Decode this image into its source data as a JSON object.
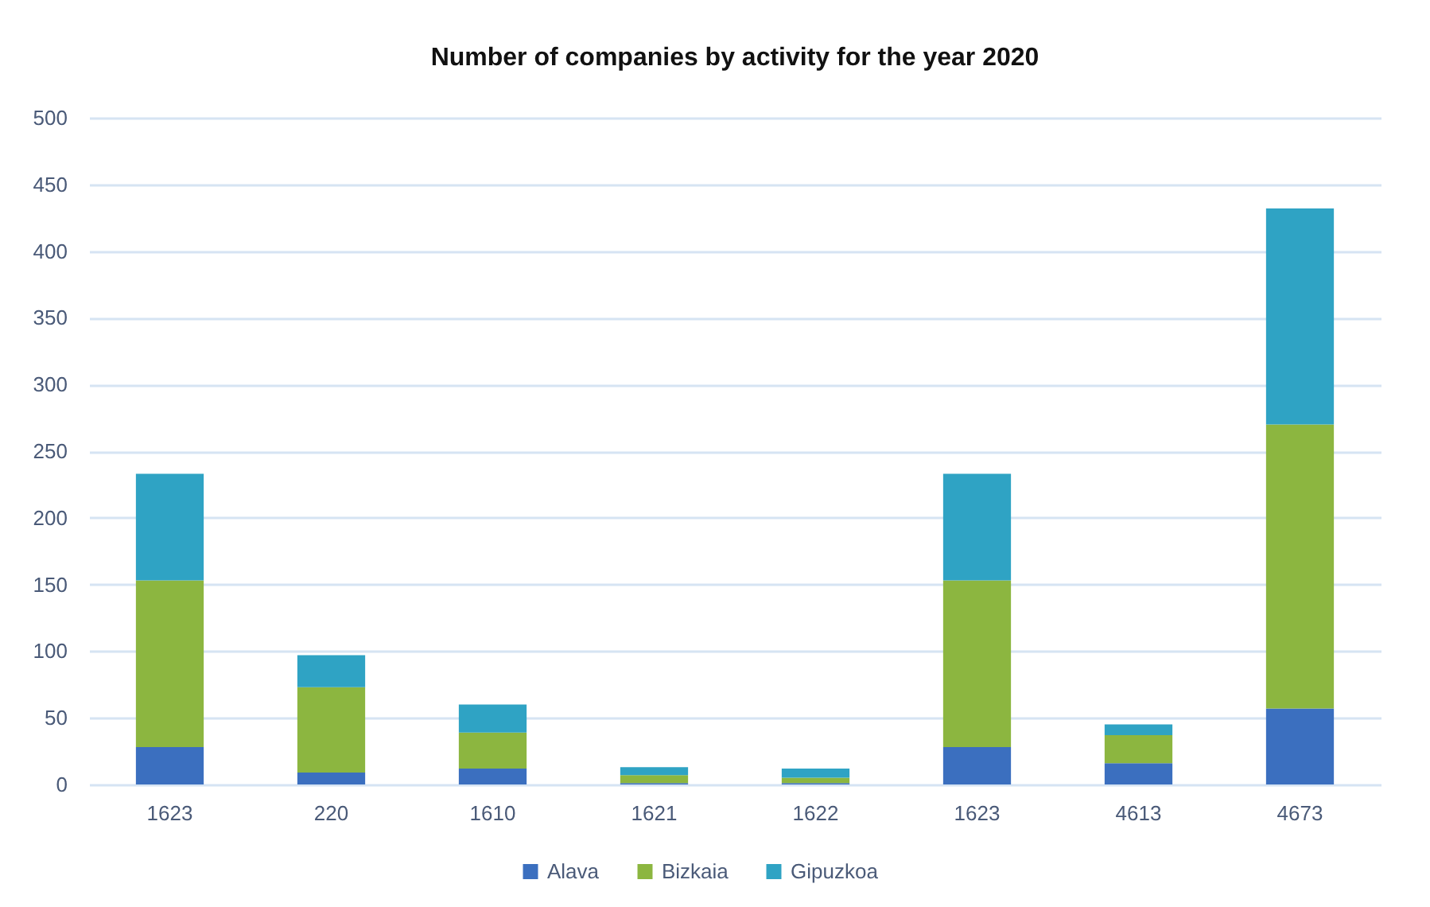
{
  "chart_data": {
    "type": "bar",
    "title": "Number of companies by activity for the year 2020",
    "categories": [
      "1623",
      "220",
      "1610",
      "1621",
      "1622",
      "1623",
      "4613",
      "4673"
    ],
    "stacked": true,
    "series": [
      {
        "name": "Alava",
        "color": "#3b6fbf",
        "values": [
          28,
          9,
          12,
          1,
          1,
          28,
          16,
          57
        ]
      },
      {
        "name": "Bizkaia",
        "color": "#8cb640",
        "values": [
          125,
          64,
          27,
          6,
          4,
          125,
          21,
          213
        ]
      },
      {
        "name": "Gipuzkoa",
        "color": "#2fa3c4",
        "values": [
          80,
          24,
          21,
          6,
          7,
          80,
          8,
          162
        ]
      }
    ],
    "ylim": [
      0,
      500
    ],
    "yticks": [
      0,
      50,
      100,
      150,
      200,
      250,
      300,
      350,
      400,
      450,
      500
    ],
    "grid": "y",
    "legend": "bottom"
  }
}
